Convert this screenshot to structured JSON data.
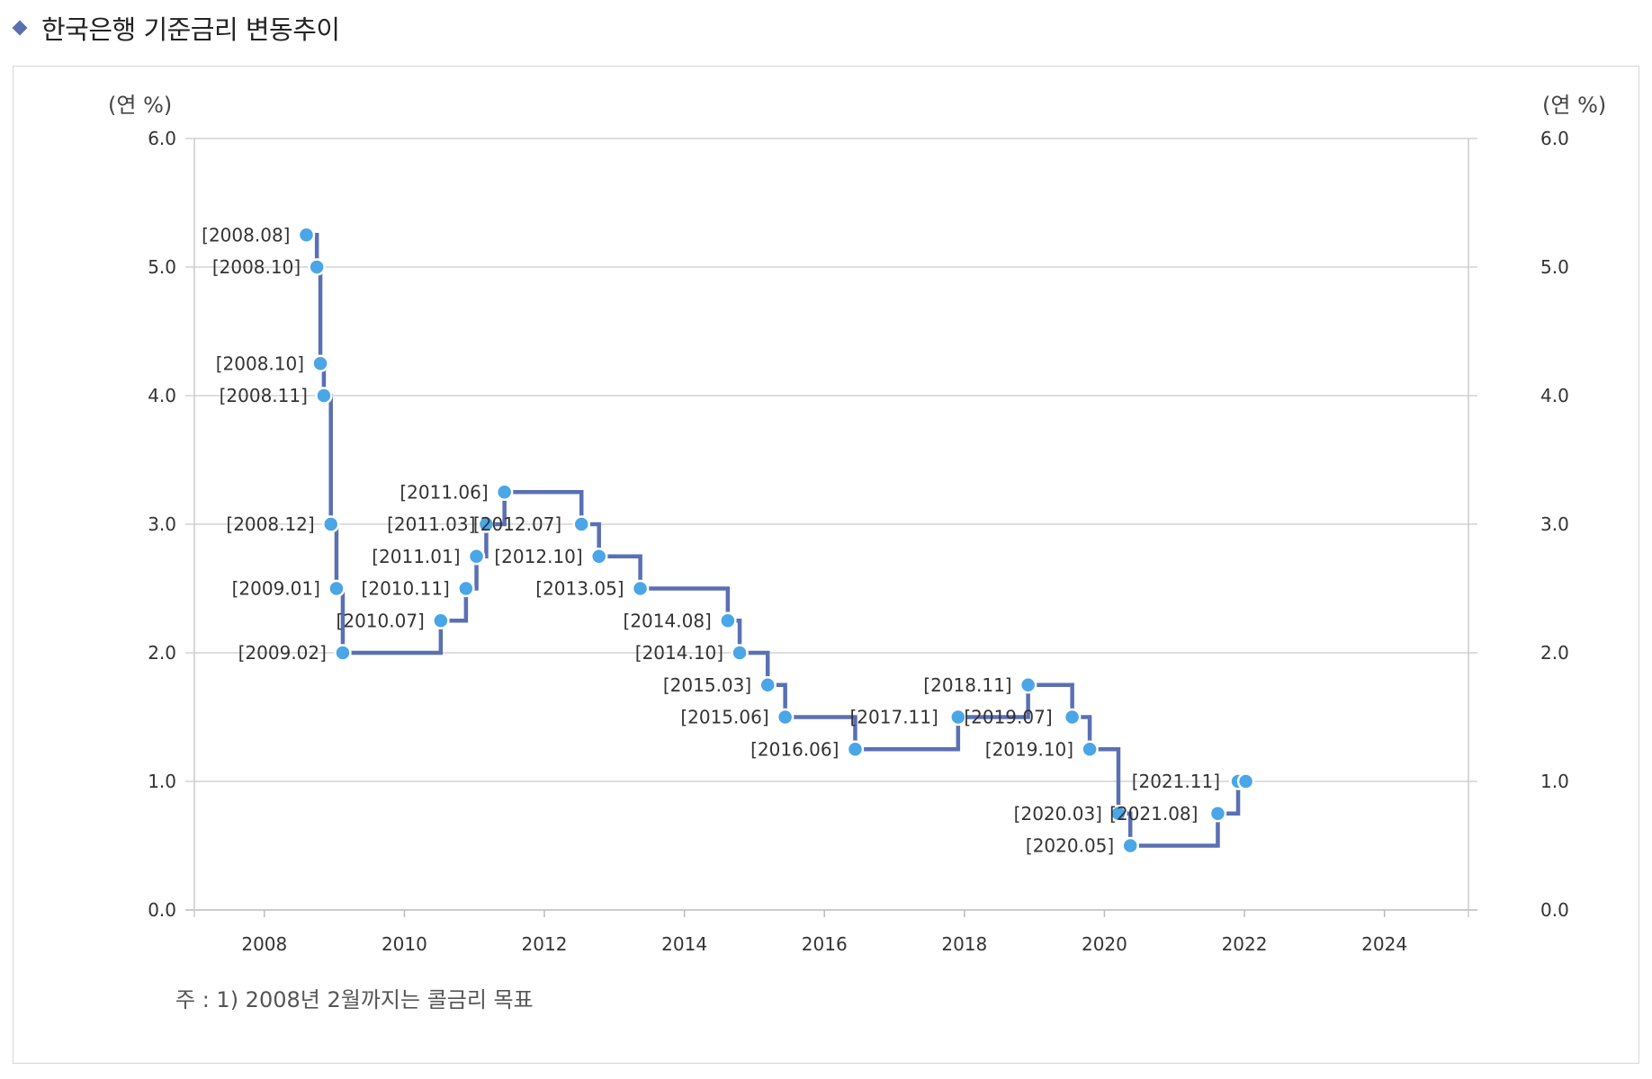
{
  "header": {
    "title": "한국은행 기준금리 변동추이"
  },
  "chart_data": {
    "type": "line",
    "step": true,
    "title": "한국은행 기준금리 변동추이",
    "y_unit_left": "(연 %)",
    "y_unit_right": "(연 %)",
    "xlim": [
      2007,
      2025.2
    ],
    "ylim": [
      0,
      6
    ],
    "x_ticks": [
      "2008",
      "2010",
      "2012",
      "2014",
      "2016",
      "2018",
      "2020",
      "2022",
      "2024"
    ],
    "y_ticks": [
      "0.0",
      "1.0",
      "2.0",
      "3.0",
      "4.0",
      "5.0",
      "6.0"
    ],
    "grid": "horizontal",
    "line_color": "#5a70b4",
    "marker_color": "#4aa6e6",
    "points": [
      {
        "x": 2008.6,
        "y": 5.25,
        "label": "[2008.08]"
      },
      {
        "x": 2008.75,
        "y": 5.0,
        "label": "[2008.10]"
      },
      {
        "x": 2008.8,
        "y": 4.25,
        "label": "[2008.10]"
      },
      {
        "x": 2008.85,
        "y": 4.0,
        "label": "[2008.11]"
      },
      {
        "x": 2008.95,
        "y": 3.0,
        "label": "[2008.12]"
      },
      {
        "x": 2009.03,
        "y": 2.5,
        "label": "[2009.01]"
      },
      {
        "x": 2009.12,
        "y": 2.0,
        "label": "[2009.02]"
      },
      {
        "x": 2010.52,
        "y": 2.25,
        "label": "[2010.07]"
      },
      {
        "x": 2010.88,
        "y": 2.5,
        "label": "[2010.11]"
      },
      {
        "x": 2011.03,
        "y": 2.75,
        "label": "[2011.01]"
      },
      {
        "x": 2011.17,
        "y": 3.0,
        "label": "[2011.03]"
      },
      {
        "x": 2011.43,
        "y": 3.25,
        "label": "[2011.06]"
      },
      {
        "x": 2012.53,
        "y": 3.0,
        "label": "[2012.07]"
      },
      {
        "x": 2012.78,
        "y": 2.75,
        "label": "[2012.10]"
      },
      {
        "x": 2013.37,
        "y": 2.5,
        "label": "[2013.05]"
      },
      {
        "x": 2014.62,
        "y": 2.25,
        "label": "[2014.08]"
      },
      {
        "x": 2014.79,
        "y": 2.0,
        "label": "[2014.10]"
      },
      {
        "x": 2015.19,
        "y": 1.75,
        "label": "[2015.03]"
      },
      {
        "x": 2015.44,
        "y": 1.5,
        "label": "[2015.06]"
      },
      {
        "x": 2016.44,
        "y": 1.25,
        "label": "[2016.06]"
      },
      {
        "x": 2017.91,
        "y": 1.5,
        "label": "[2017.11]"
      },
      {
        "x": 2018.91,
        "y": 1.75,
        "label": "[2018.11]"
      },
      {
        "x": 2019.54,
        "y": 1.5,
        "label": "[2019.07]"
      },
      {
        "x": 2019.79,
        "y": 1.25,
        "label": "[2019.10]"
      },
      {
        "x": 2020.2,
        "y": 0.75,
        "label": "[2020.03]"
      },
      {
        "x": 2020.37,
        "y": 0.5,
        "label": "[2020.05]"
      },
      {
        "x": 2021.62,
        "y": 0.75,
        "label": "[2021.08]"
      },
      {
        "x": 2021.91,
        "y": 1.0,
        "label": "[2021.11]"
      },
      {
        "x": 2022.02,
        "y": 1.0,
        "label": ""
      }
    ]
  },
  "footnote": "주 : 1) 2008년 2월까지는 콜금리 목표"
}
